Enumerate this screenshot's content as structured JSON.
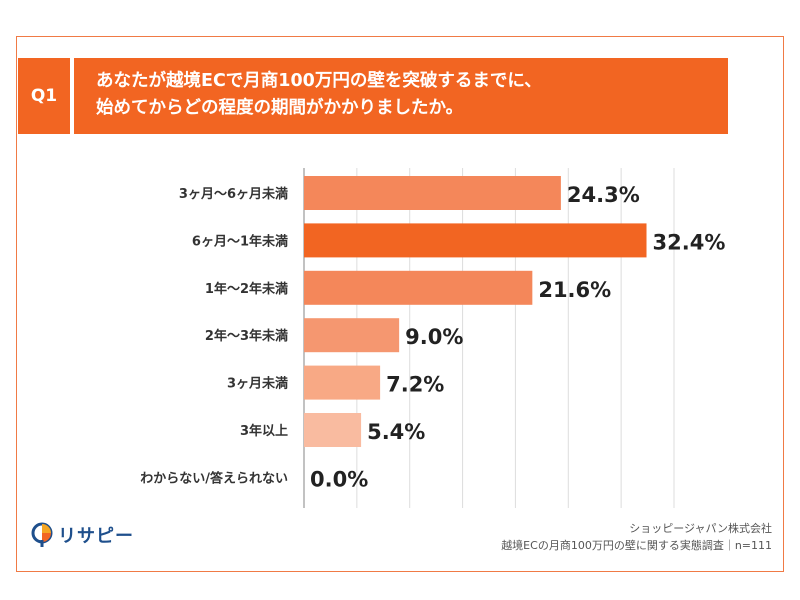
{
  "question": {
    "badge": "Q1",
    "line1": "あなたが越境ECで月商100万円の壁を突破するまでに、",
    "line2": "始めてからどの程度の期間がかかりましたか。"
  },
  "chart_data": {
    "type": "bar",
    "orientation": "horizontal",
    "categories": [
      "3ヶ月〜6ヶ月未満",
      "6ヶ月〜1年未満",
      "1年〜2年未満",
      "2年〜3年未満",
      "3ヶ月未満",
      "3年以上",
      "わからない/答えられない"
    ],
    "values": [
      24.3,
      32.4,
      21.6,
      9.0,
      7.2,
      5.4,
      0.0
    ],
    "value_labels": [
      "24.3%",
      "32.4%",
      "21.6%",
      "9.0%",
      "7.2%",
      "5.4%",
      "0.0%"
    ],
    "colors": [
      "#f4875a",
      "#f26522",
      "#f4875a",
      "#f59770",
      "#f8a985",
      "#f9bba0",
      "#f9bba0"
    ],
    "xlim": [
      0,
      35
    ],
    "grid": true
  },
  "footer": {
    "company": "ショッピージャパン株式会社",
    "survey": "越境ECの月商100万円の壁に関する実態調査｜n=111"
  },
  "logo": {
    "text": "リサピー"
  }
}
